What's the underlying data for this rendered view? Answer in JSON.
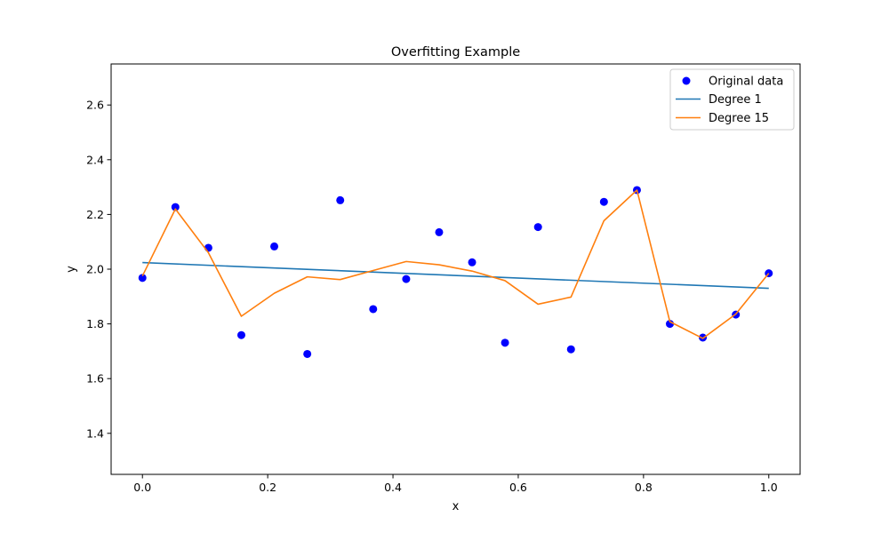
{
  "chart_data": {
    "type": "scatter",
    "title": "Overfitting Example",
    "xlabel": "x",
    "ylabel": "y",
    "xlim": [
      -0.05,
      1.05
    ],
    "ylim": [
      1.25,
      2.75
    ],
    "xticks": [
      0.0,
      0.2,
      0.4,
      0.6,
      0.8,
      1.0
    ],
    "xtick_labels": [
      "0.0",
      "0.2",
      "0.4",
      "0.6",
      "0.8",
      "1.0"
    ],
    "yticks": [
      1.4,
      1.6,
      1.8,
      2.0,
      2.2,
      2.4,
      2.6
    ],
    "ytick_labels": [
      "1.4",
      "1.6",
      "1.8",
      "2.0",
      "2.2",
      "2.4",
      "2.6"
    ],
    "grid": false,
    "legend_position": "top-right",
    "scatter": {
      "name": "Original data",
      "color": "#0000ff",
      "x": [
        0.0,
        0.0526,
        0.1053,
        0.1579,
        0.2105,
        0.2632,
        0.3158,
        0.3684,
        0.4211,
        0.4737,
        0.5263,
        0.5789,
        0.6316,
        0.6842,
        0.7368,
        0.7895,
        0.8421,
        0.8947,
        0.9474,
        1.0
      ],
      "y": [
        1.968,
        2.227,
        2.078,
        1.759,
        2.083,
        1.69,
        2.252,
        1.854,
        1.964,
        2.135,
        2.025,
        1.731,
        2.154,
        1.707,
        2.246,
        2.289,
        1.8,
        1.75,
        1.834,
        1.985
      ]
    },
    "series": [
      {
        "name": "Degree 1",
        "color": "#1f77b4",
        "x": [
          0.0,
          1.0
        ],
        "y": [
          2.024,
          1.93
        ]
      },
      {
        "name": "Degree 15",
        "color": "#ff7f0e",
        "x": [
          0.0,
          0.0526,
          0.1053,
          0.1579,
          0.2105,
          0.2632,
          0.3158,
          0.3684,
          0.4211,
          0.4737,
          0.5263,
          0.5789,
          0.6316,
          0.6842,
          0.7368,
          0.7895,
          0.8421,
          0.8947,
          0.9474,
          1.0
        ],
        "y": [
          1.975,
          2.22,
          2.06,
          1.828,
          1.912,
          1.972,
          1.962,
          1.995,
          2.028,
          2.016,
          1.993,
          1.958,
          1.872,
          1.898,
          2.177,
          2.289,
          1.808,
          1.747,
          1.836,
          1.985
        ]
      }
    ]
  }
}
